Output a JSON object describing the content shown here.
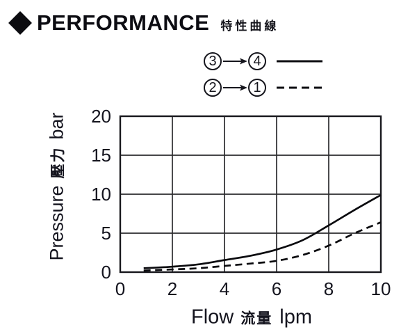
{
  "title": {
    "main": "PERFORMANCE",
    "cjk": "特性曲線"
  },
  "legend": {
    "rows": [
      {
        "from": "3",
        "to": "4",
        "style": "solid"
      },
      {
        "from": "2",
        "to": "1",
        "style": "dashed"
      }
    ]
  },
  "axis_label_parts": {
    "y_latin_1": "Pressure",
    "y_cjk": "壓力",
    "y_latin_2": "bar",
    "x_latin_1": "Flow",
    "x_cjk": "流量",
    "x_latin_2": "lpm"
  },
  "chart_data": {
    "type": "line",
    "title": "PERFORMANCE 特性曲線",
    "xlabel": "Flow 流量 lpm",
    "ylabel": "Pressure 壓力 bar",
    "xlim": [
      0,
      10
    ],
    "ylim": [
      0,
      20
    ],
    "x_ticks": [
      0,
      2,
      4,
      6,
      8,
      10
    ],
    "y_ticks": [
      0,
      5,
      10,
      15,
      20
    ],
    "grid": true,
    "legend_position": "above plot, top-right",
    "series": [
      {
        "name": "3→4",
        "line_style": "solid",
        "color": "#0a0a0e",
        "points": [
          [
            0.9,
            0.5
          ],
          [
            2,
            0.7
          ],
          [
            3,
            1.0
          ],
          [
            4,
            1.55
          ],
          [
            5,
            2.1
          ],
          [
            6,
            2.9
          ],
          [
            7,
            4.1
          ],
          [
            8,
            6.0
          ],
          [
            9,
            8.0
          ],
          [
            10,
            9.9
          ]
        ]
      },
      {
        "name": "2→1",
        "line_style": "dashed",
        "color": "#0a0a0e",
        "points": [
          [
            0.9,
            0.2
          ],
          [
            2,
            0.35
          ],
          [
            3,
            0.5
          ],
          [
            4,
            0.8
          ],
          [
            5,
            1.1
          ],
          [
            6,
            1.45
          ],
          [
            7,
            2.2
          ],
          [
            8,
            3.4
          ],
          [
            9,
            5.0
          ],
          [
            10,
            6.4
          ]
        ]
      }
    ]
  }
}
